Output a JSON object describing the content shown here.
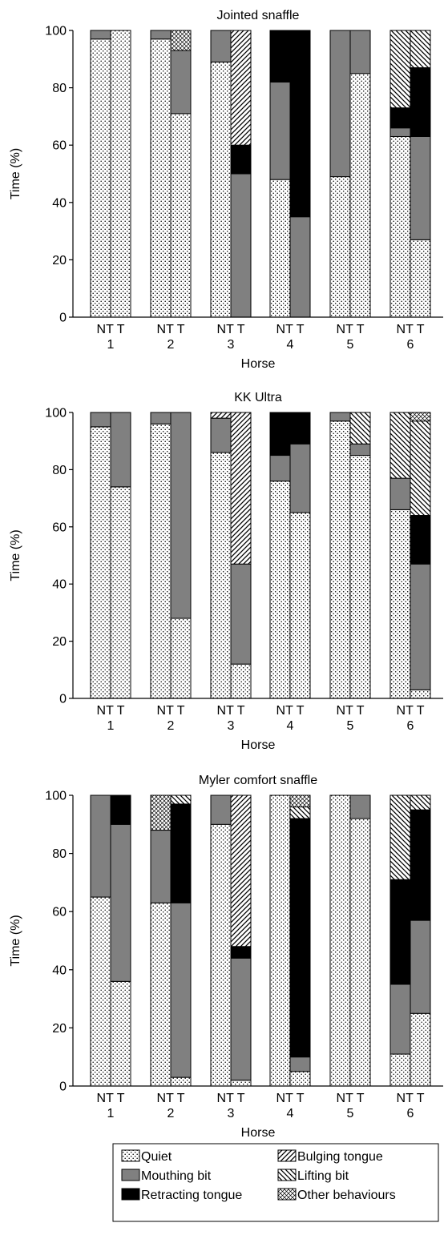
{
  "series_styles": {
    "Quiet": {
      "fill": "url(#pat-dots)",
      "pattern": "dots"
    },
    "Mouthing bit": {
      "fill": "#808080",
      "pattern": "solid-grey"
    },
    "Retracting tongue": {
      "fill": "#000000",
      "pattern": "solid-black"
    },
    "Bulging tongue": {
      "fill": "url(#pat-fwd)",
      "pattern": "forward-diagonal"
    },
    "Lifting bit": {
      "fill": "url(#pat-back)",
      "pattern": "backward-diagonal"
    },
    "Other behaviours": {
      "fill": "url(#pat-cross)",
      "pattern": "cross-hatch"
    }
  },
  "legend": {
    "entries": [
      "Quiet",
      "Mouthing bit",
      "Retracting tongue",
      "Bulging tongue",
      "Lifting bit",
      "Other behaviours"
    ]
  },
  "chart_data": [
    {
      "type": "bar",
      "stacked": true,
      "title": "Jointed snaffle",
      "xlabel": "Horse",
      "ylabel": "Time (%)",
      "ylim": [
        0,
        100
      ],
      "yticks": [
        0,
        20,
        40,
        60,
        80,
        100
      ],
      "groups": [
        "1",
        "2",
        "3",
        "4",
        "5",
        "6"
      ],
      "bar_labels": [
        "NT",
        "T"
      ],
      "stack_order": [
        "Quiet",
        "Mouthing bit",
        "Retracting tongue",
        "Lifting bit",
        "Bulging tongue",
        "Other behaviours"
      ],
      "bars": [
        {
          "group": "1",
          "label": "NT",
          "segments": {
            "Quiet": 97,
            "Mouthing bit": 3
          }
        },
        {
          "group": "1",
          "label": "T",
          "segments": {
            "Quiet": 100
          }
        },
        {
          "group": "2",
          "label": "NT",
          "segments": {
            "Quiet": 97,
            "Mouthing bit": 3
          }
        },
        {
          "group": "2",
          "label": "T",
          "segments": {
            "Quiet": 71,
            "Mouthing bit": 22,
            "Other behaviours": 7
          }
        },
        {
          "group": "3",
          "label": "NT",
          "segments": {
            "Quiet": 89,
            "Mouthing bit": 11
          }
        },
        {
          "group": "3",
          "label": "T",
          "segments": {
            "Mouthing bit": 50,
            "Retracting tongue": 10,
            "Bulging tongue": 40
          }
        },
        {
          "group": "4",
          "label": "NT",
          "segments": {
            "Quiet": 48,
            "Mouthing bit": 34,
            "Retracting tongue": 18
          }
        },
        {
          "group": "4",
          "label": "T",
          "segments": {
            "Mouthing bit": 35,
            "Retracting tongue": 65
          }
        },
        {
          "group": "5",
          "label": "NT",
          "segments": {
            "Quiet": 49,
            "Mouthing bit": 51
          }
        },
        {
          "group": "5",
          "label": "T",
          "segments": {
            "Quiet": 85,
            "Mouthing bit": 15
          }
        },
        {
          "group": "6",
          "label": "NT",
          "segments": {
            "Quiet": 63,
            "Mouthing bit": 3,
            "Retracting tongue": 7,
            "Lifting bit": 27
          }
        },
        {
          "group": "6",
          "label": "T",
          "segments": {
            "Quiet": 27,
            "Mouthing bit": 36,
            "Retracting tongue": 24,
            "Lifting bit": 13
          }
        }
      ]
    },
    {
      "type": "bar",
      "stacked": true,
      "title": "KK Ultra",
      "xlabel": "Horse",
      "ylabel": "Time (%)",
      "ylim": [
        0,
        100
      ],
      "yticks": [
        0,
        20,
        40,
        60,
        80,
        100
      ],
      "groups": [
        "1",
        "2",
        "3",
        "4",
        "5",
        "6"
      ],
      "bar_labels": [
        "NT",
        "T"
      ],
      "stack_order": [
        "Quiet",
        "Mouthing bit",
        "Retracting tongue",
        "Lifting bit",
        "Bulging tongue",
        "Other behaviours"
      ],
      "bars": [
        {
          "group": "1",
          "label": "NT",
          "segments": {
            "Quiet": 95,
            "Mouthing bit": 5
          }
        },
        {
          "group": "1",
          "label": "T",
          "segments": {
            "Quiet": 74,
            "Mouthing bit": 26
          }
        },
        {
          "group": "2",
          "label": "NT",
          "segments": {
            "Quiet": 96,
            "Mouthing bit": 4
          }
        },
        {
          "group": "2",
          "label": "T",
          "segments": {
            "Quiet": 28,
            "Mouthing bit": 72
          }
        },
        {
          "group": "3",
          "label": "NT",
          "segments": {
            "Quiet": 86,
            "Mouthing bit": 12,
            "Bulging tongue": 2
          }
        },
        {
          "group": "3",
          "label": "T",
          "segments": {
            "Quiet": 12,
            "Mouthing bit": 35,
            "Bulging tongue": 53
          }
        },
        {
          "group": "4",
          "label": "NT",
          "segments": {
            "Quiet": 76,
            "Mouthing bit": 9,
            "Retracting tongue": 15
          }
        },
        {
          "group": "4",
          "label": "T",
          "segments": {
            "Quiet": 65,
            "Mouthing bit": 24,
            "Retracting tongue": 11
          }
        },
        {
          "group": "5",
          "label": "NT",
          "segments": {
            "Quiet": 97,
            "Mouthing bit": 3
          }
        },
        {
          "group": "5",
          "label": "T",
          "segments": {
            "Quiet": 85,
            "Mouthing bit": 4,
            "Lifting bit": 11
          }
        },
        {
          "group": "6",
          "label": "NT",
          "segments": {
            "Quiet": 66,
            "Mouthing bit": 11,
            "Lifting bit": 23
          }
        },
        {
          "group": "6",
          "label": "T",
          "segments": {
            "Quiet": 3,
            "Mouthing bit": 44,
            "Retracting tongue": 17,
            "Other behaviours": 3,
            "Lifting bit": 33
          }
        }
      ]
    },
    {
      "type": "bar",
      "stacked": true,
      "title": "Myler comfort snaffle",
      "xlabel": "Horse",
      "ylabel": "Time (%)",
      "ylim": [
        0,
        100
      ],
      "yticks": [
        0,
        20,
        40,
        60,
        80,
        100
      ],
      "groups": [
        "1",
        "2",
        "3",
        "4",
        "5",
        "6"
      ],
      "bar_labels": [
        "NT",
        "T"
      ],
      "stack_order": [
        "Quiet",
        "Mouthing bit",
        "Retracting tongue",
        "Lifting bit",
        "Bulging tongue",
        "Other behaviours"
      ],
      "bars": [
        {
          "group": "1",
          "label": "NT",
          "segments": {
            "Quiet": 65,
            "Mouthing bit": 35
          }
        },
        {
          "group": "1",
          "label": "T",
          "segments": {
            "Quiet": 36,
            "Mouthing bit": 54,
            "Retracting tongue": 10
          }
        },
        {
          "group": "2",
          "label": "NT",
          "segments": {
            "Quiet": 63,
            "Mouthing bit": 25,
            "Other behaviours": 12
          }
        },
        {
          "group": "2",
          "label": "T",
          "segments": {
            "Quiet": 3,
            "Mouthing bit": 60,
            "Retracting tongue": 34,
            "Lifting bit": 3
          }
        },
        {
          "group": "3",
          "label": "NT",
          "segments": {
            "Quiet": 90,
            "Mouthing bit": 10
          }
        },
        {
          "group": "3",
          "label": "T",
          "segments": {
            "Quiet": 2,
            "Mouthing bit": 42,
            "Retracting tongue": 4,
            "Bulging tongue": 52
          }
        },
        {
          "group": "4",
          "label": "NT",
          "segments": {
            "Quiet": 100
          }
        },
        {
          "group": "4",
          "label": "T",
          "segments": {
            "Quiet": 5,
            "Mouthing bit": 5,
            "Retracting tongue": 82,
            "Lifting bit": 4,
            "Other behaviours": 4
          }
        },
        {
          "group": "5",
          "label": "NT",
          "segments": {
            "Quiet": 100
          }
        },
        {
          "group": "5",
          "label": "T",
          "segments": {
            "Quiet": 92,
            "Mouthing bit": 8
          }
        },
        {
          "group": "6",
          "label": "NT",
          "segments": {
            "Quiet": 11,
            "Mouthing bit": 24,
            "Retracting tongue": 36,
            "Lifting bit": 29
          }
        },
        {
          "group": "6",
          "label": "T",
          "segments": {
            "Quiet": 25,
            "Mouthing bit": 32,
            "Retracting tongue": 38,
            "Lifting bit": 5
          }
        }
      ]
    }
  ]
}
